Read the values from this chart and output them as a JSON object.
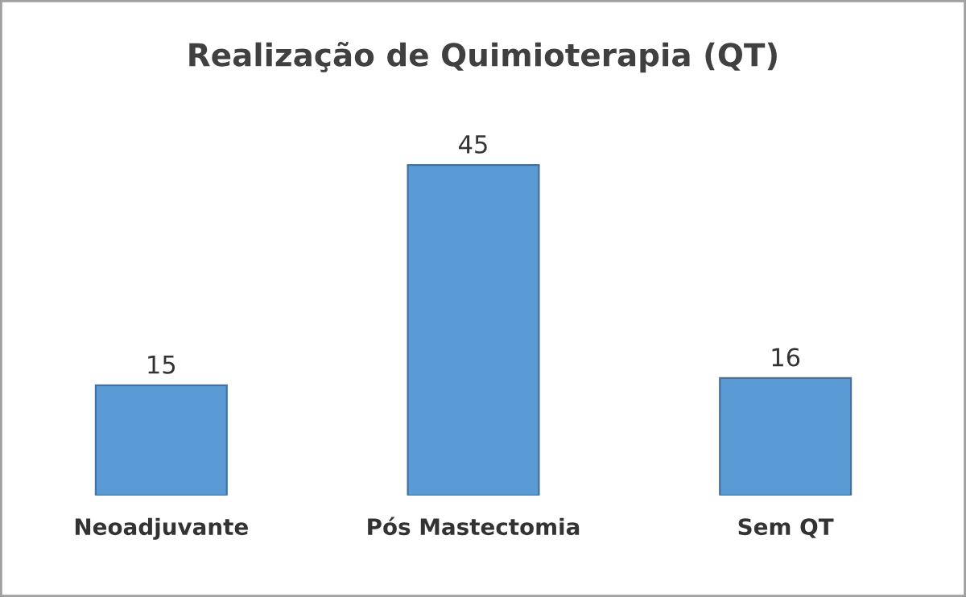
{
  "chart_data": {
    "type": "bar",
    "title": "Realização de Quimioterapia (QT)",
    "categories": [
      "Neoadjuvante",
      "Pós Mastectomia",
      "Sem QT"
    ],
    "values": [
      15,
      45,
      16
    ],
    "color": "#5b9bd5",
    "data_labels": true,
    "grid": false,
    "legend": false
  }
}
